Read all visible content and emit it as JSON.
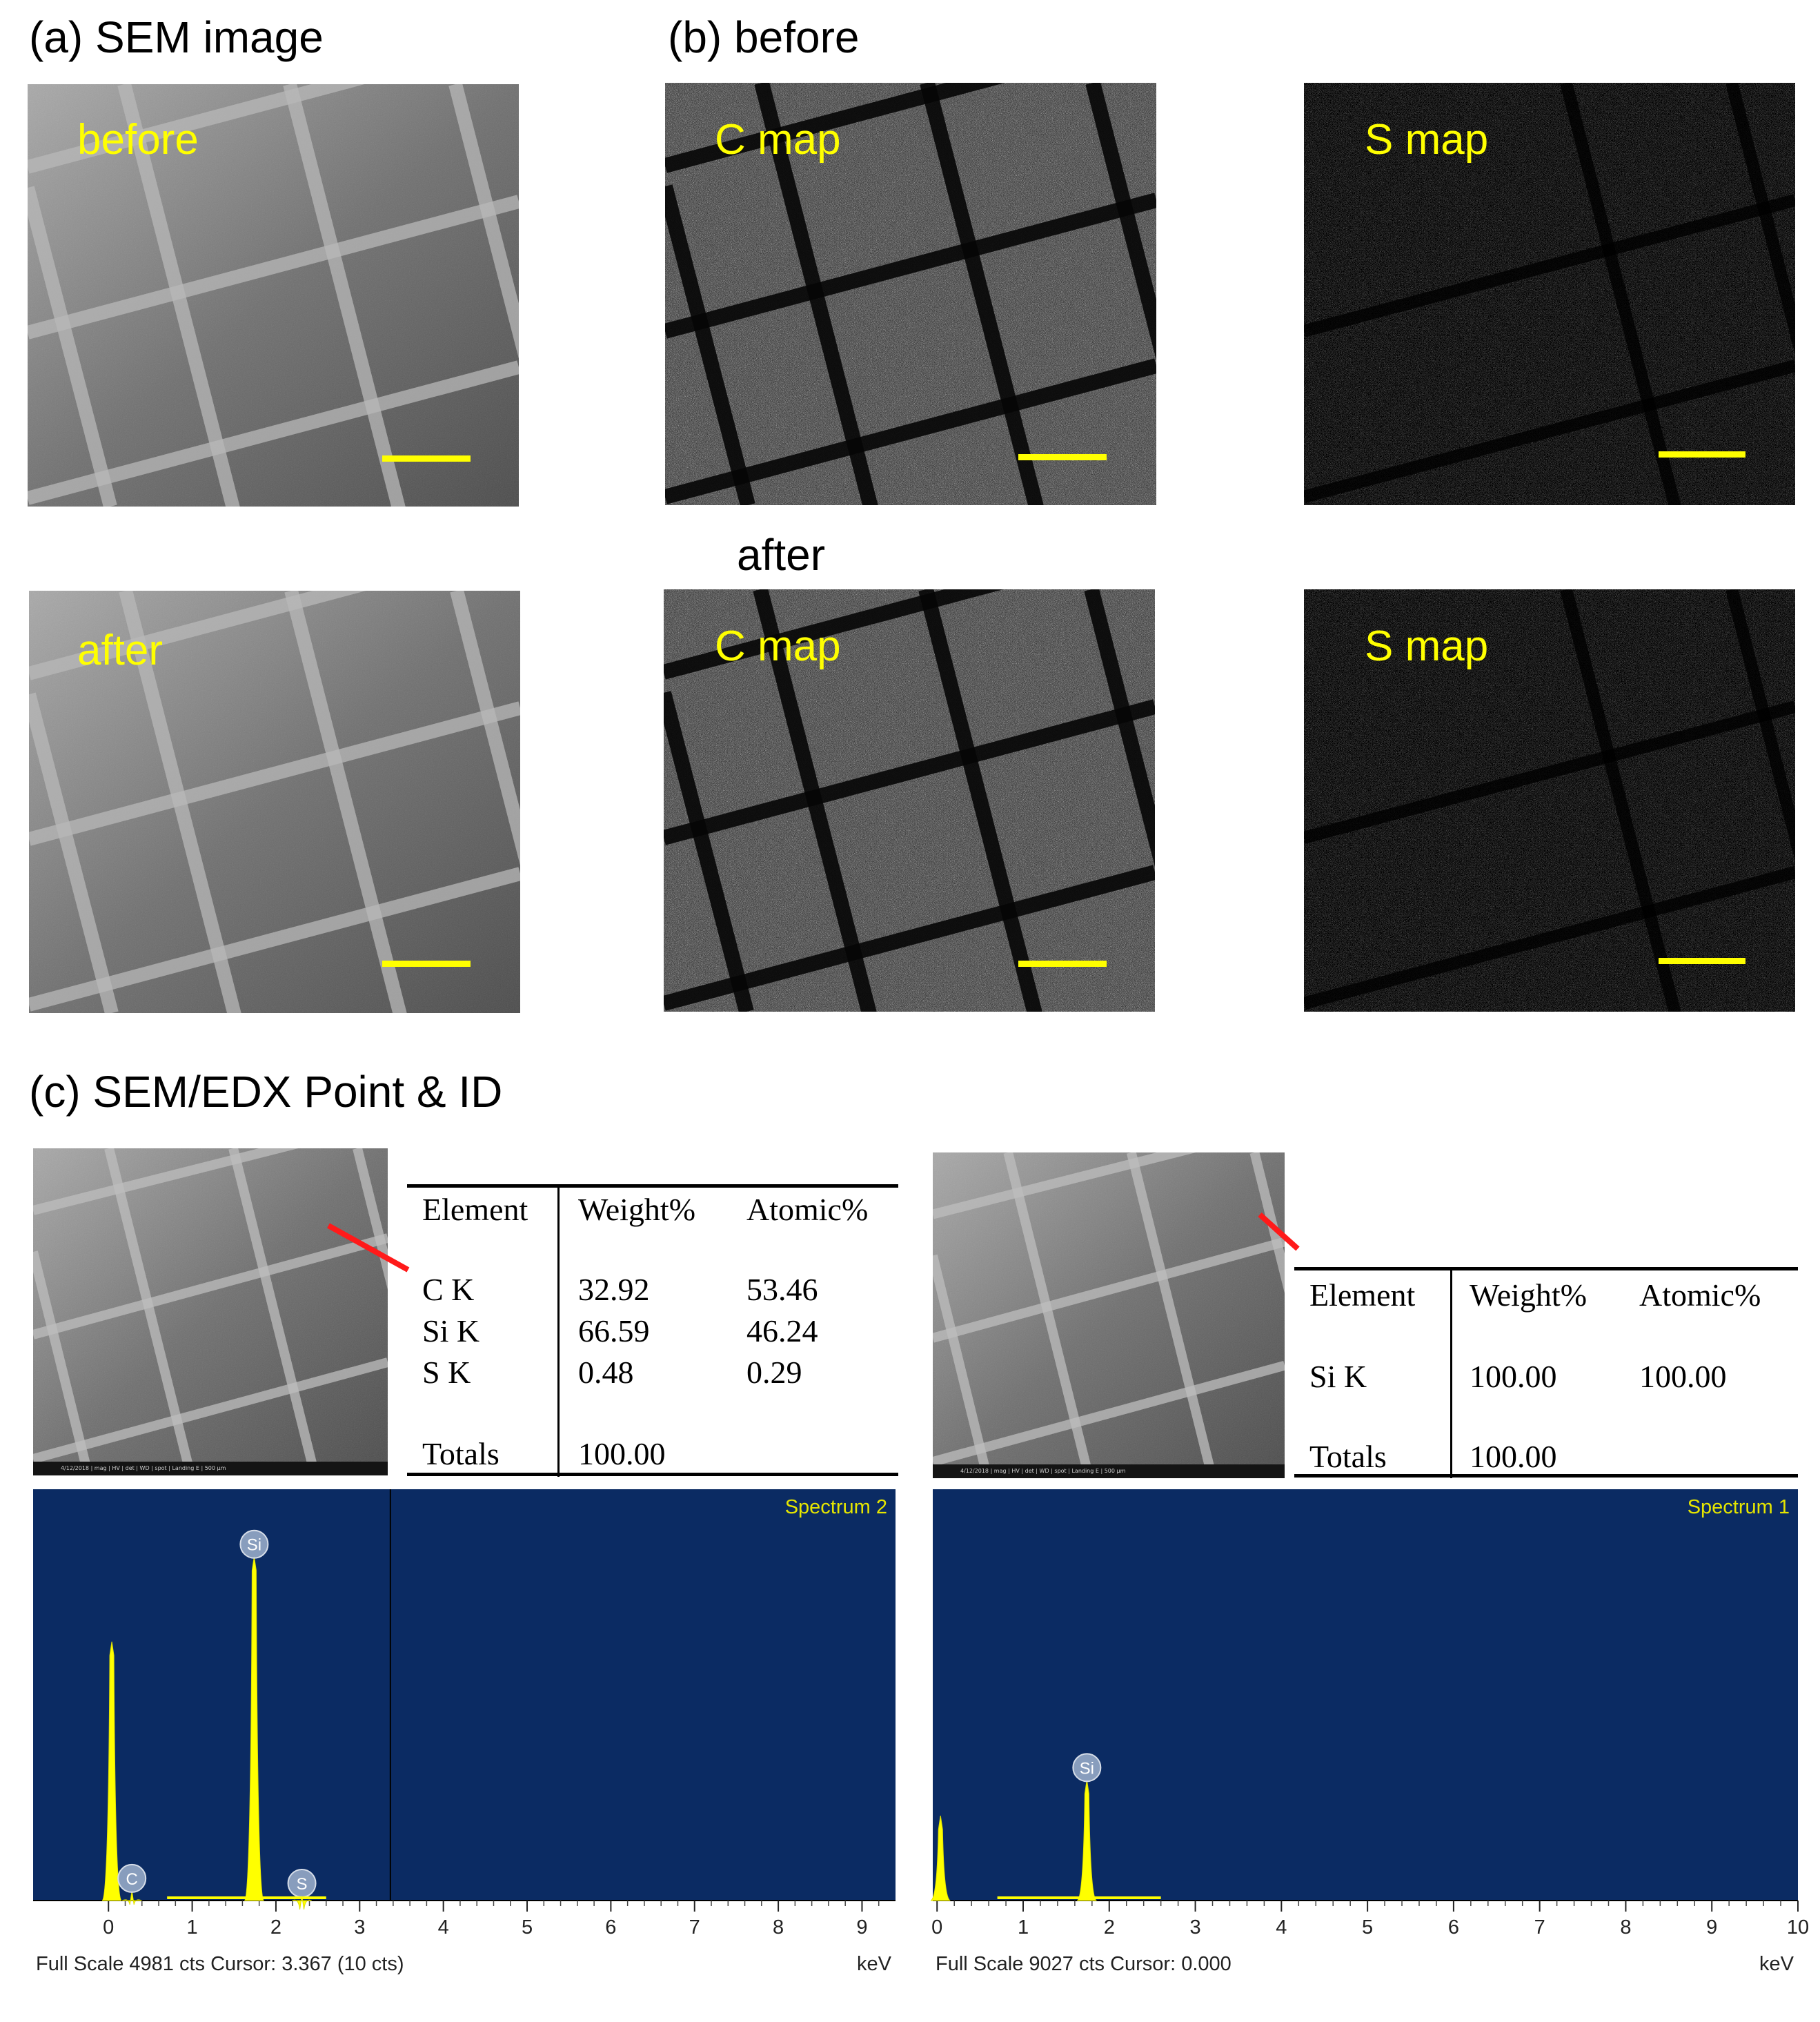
{
  "panel_a": {
    "title": "(a) SEM image",
    "before_label": "before",
    "after_label": "after"
  },
  "panel_b": {
    "title": "(b) before",
    "after_heading": "after",
    "c_map_label": "C map",
    "s_map_label": "S map"
  },
  "panel_c": {
    "title": "(c) SEM/EDX Point & ID",
    "thumb_footer": "4/12/2018 | mag | HV | det | WD | spot | Landing E | 500 µm",
    "left_table": {
      "headers": [
        "Element",
        "Weight%",
        "Atomic%"
      ],
      "rows": [
        [
          "C K",
          "32.92",
          "53.46"
        ],
        [
          "Si K",
          "66.59",
          "46.24"
        ],
        [
          "S K",
          "0.48",
          "0.29"
        ]
      ],
      "totals_label": "Totals",
      "totals_value": "100.00"
    },
    "right_table": {
      "headers": [
        "Element",
        "Weight%",
        "Atomic%"
      ],
      "rows": [
        [
          "Si K",
          "100.00",
          "100.00"
        ]
      ],
      "totals_label": "Totals",
      "totals_value": "100.00"
    },
    "left_spectrum": {
      "name": "Spectrum 2",
      "footer": "Full Scale 4981 cts Cursor: 3.367  (10 cts)",
      "unit": "keV",
      "cursor_kev": 3.367
    },
    "right_spectrum": {
      "name": "Spectrum 1",
      "footer": "Full Scale 9027 cts Cursor: 0.000",
      "unit": "keV",
      "cursor_kev": 0.0
    }
  },
  "chart_data": [
    {
      "type": "line",
      "name": "Spectrum 2",
      "xlabel": "keV",
      "xlim": [
        -0.9,
        9.4
      ],
      "x_ticks": [
        0,
        1,
        2,
        3,
        4,
        5,
        6,
        7,
        8,
        9
      ],
      "ylim": [
        0,
        4981
      ],
      "peaks": [
        {
          "kev": 0.04,
          "cts": 3200,
          "label": ""
        },
        {
          "kev": 0.28,
          "cts": 120,
          "label": "C"
        },
        {
          "kev": 1.74,
          "cts": 4250,
          "label": "Si"
        },
        {
          "kev": 2.31,
          "cts": 60,
          "label": "S"
        }
      ],
      "annotations": [
        "Si",
        "C",
        "S"
      ]
    },
    {
      "type": "line",
      "name": "Spectrum 1",
      "xlabel": "keV",
      "xlim": [
        -0.05,
        10.0
      ],
      "x_ticks": [
        0,
        1,
        2,
        3,
        4,
        5,
        6,
        7,
        8,
        9,
        10
      ],
      "ylim": [
        0,
        9027
      ],
      "peaks": [
        {
          "kev": 0.04,
          "cts": 1900,
          "label": ""
        },
        {
          "kev": 1.74,
          "cts": 2700,
          "label": "Si"
        }
      ],
      "annotations": [
        "Si"
      ]
    }
  ],
  "colors": {
    "overlay_text": "#ffff00",
    "scale_bar": "#ffff00",
    "marker_line": "#ff1a1a",
    "spectrum_background": "#0b2b63",
    "spectrum_fill": "#ffff00"
  }
}
